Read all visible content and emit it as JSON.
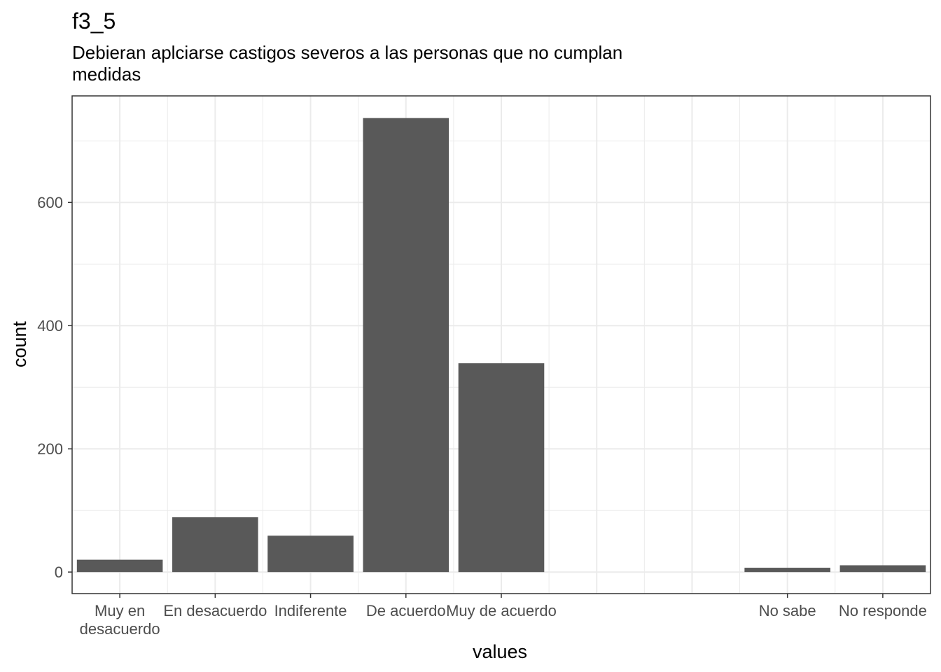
{
  "chart_data": {
    "type": "bar",
    "title": "f3_5",
    "subtitle": [
      "Debieran aplciarse castigos severos a las personas que no cumplan",
      "medidas"
    ],
    "xlabel": "values",
    "ylabel": "count",
    "categories": [
      [
        "Muy en",
        "desacuerdo"
      ],
      [
        "En desacuerdo"
      ],
      [
        "Indiferente"
      ],
      [
        "De acuerdo"
      ],
      [
        "Muy de acuerdo"
      ],
      [
        "No sabe"
      ],
      [
        "No responde"
      ]
    ],
    "x_positions": [
      1,
      2,
      3,
      4,
      5,
      8,
      9
    ],
    "values": [
      20,
      89,
      59,
      737,
      339,
      7,
      11
    ],
    "xlim": [
      0.5,
      9.5
    ],
    "ylim": [
      -35,
      773
    ],
    "y_ticks": [
      0,
      200,
      400,
      600
    ],
    "y_minor_ticks": [
      100,
      300,
      500,
      700
    ],
    "grid": true,
    "bar_color": "#595959",
    "grid_color": "#ebebeb",
    "panel_border_color": "#333333"
  }
}
